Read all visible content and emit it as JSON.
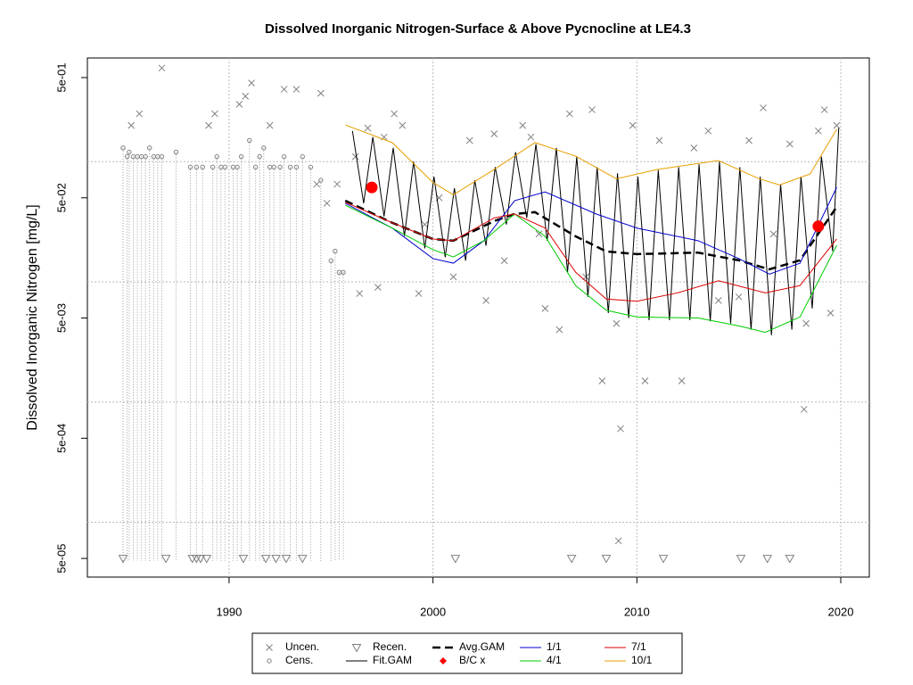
{
  "chart_data": {
    "type": "scatter",
    "title": "Dissolved Inorganic Nitrogen-Surface & Above Pycnocline at LE4.3",
    "ylabel": "Dissolved Inorganic Nitrogen [mg/L]",
    "xlim": [
      1983.05,
      2021.4
    ],
    "ylim": [
      3.5e-05,
      0.728
    ],
    "log_y": true,
    "grid": true,
    "xticks": [
      1990,
      2000,
      2010,
      2020
    ],
    "yticks": [
      {
        "value": 0.5,
        "label": "5e-01"
      },
      {
        "value": 0.05,
        "label": "5e-02"
      },
      {
        "value": 0.005,
        "label": "5e-03"
      },
      {
        "value": 0.0005,
        "label": "5e-04"
      },
      {
        "value": 5e-05,
        "label": "5e-05"
      }
    ],
    "ygrid": [
      0.1,
      0.01,
      0.001,
      0.0001
    ],
    "legend": "bottom",
    "series": [
      {
        "name": "Uncen.",
        "marker": "x",
        "color": "#808080",
        "x": [
          1985.2,
          1985.6,
          1986.7,
          1989.0,
          1989.3,
          1990.5,
          1990.8,
          1991.1,
          1992.0,
          1992.7,
          1993.3,
          1994.5,
          1994.3,
          1994.8,
          1995.3,
          1996.2,
          1996.4,
          1996.8,
          1997.3,
          1997.6,
          1998.1,
          1998.5,
          1999.3,
          1999.6,
          2000.3,
          2001.0,
          2001.8,
          2002.6,
          2003.0,
          2003.5,
          2004.4,
          2004.8,
          2005.2,
          2005.5,
          2006.2,
          2006.7,
          2007.5,
          2007.8,
          2008.3,
          2009.0,
          2009.2,
          2009.1,
          2009.8,
          2010.4,
          2011.1,
          2012.2,
          2012.8,
          2013.5,
          2014.0,
          2015.0,
          2015.5,
          2016.2,
          2016.7,
          2017.5,
          2018.3,
          2018.2,
          2018.9,
          2019.2,
          2019.5,
          2019.8
        ],
        "values": [
          0.2,
          0.25,
          0.6,
          0.2,
          0.25,
          0.3,
          0.35,
          0.45,
          0.2,
          0.4,
          0.4,
          0.37,
          0.065,
          0.045,
          0.065,
          0.11,
          0.008,
          0.19,
          0.009,
          0.16,
          0.25,
          0.2,
          0.008,
          0.03,
          0.05,
          0.011,
          0.15,
          0.007,
          0.17,
          0.015,
          0.2,
          0.16,
          0.025,
          0.006,
          0.004,
          0.25,
          0.011,
          0.27,
          0.0015,
          0.0045,
          0.0006,
          7e-05,
          0.2,
          0.0015,
          0.15,
          0.0015,
          0.13,
          0.18,
          0.007,
          0.0075,
          0.15,
          0.28,
          0.025,
          0.14,
          0.0045,
          0.00087,
          0.18,
          0.27,
          0.0055,
          0.2
        ]
      },
      {
        "name": "Cens.",
        "marker": "circle",
        "color": "#808080",
        "x": [
          1984.8,
          1985.0,
          1985.1,
          1985.3,
          1985.5,
          1985.7,
          1985.9,
          1986.1,
          1986.3,
          1986.5,
          1986.7,
          1987.4,
          1988.1,
          1988.4,
          1988.7,
          1989.2,
          1989.4,
          1989.6,
          1989.8,
          1990.2,
          1990.4,
          1990.6,
          1991.0,
          1991.3,
          1991.5,
          1991.7,
          1992.0,
          1992.2,
          1992.5,
          1992.7,
          1993.0,
          1993.3,
          1993.6,
          1994.0,
          1994.5,
          1995.0,
          1995.2,
          1995.4,
          1995.6
        ],
        "values": [
          0.13,
          0.11,
          0.12,
          0.11,
          0.11,
          0.11,
          0.11,
          0.13,
          0.11,
          0.11,
          0.11,
          0.12,
          0.09,
          0.09,
          0.09,
          0.09,
          0.11,
          0.09,
          0.09,
          0.09,
          0.09,
          0.11,
          0.15,
          0.09,
          0.11,
          0.13,
          0.09,
          0.09,
          0.09,
          0.11,
          0.09,
          0.09,
          0.11,
          0.09,
          0.07,
          0.015,
          0.018,
          0.012,
          0.012
        ]
      },
      {
        "name": "Recen.",
        "marker": "triangle",
        "color": "#808080",
        "x": [
          1984.8,
          1986.9,
          1988.2,
          1988.4,
          1988.6,
          1988.9,
          1990.7,
          1991.8,
          1992.3,
          1992.8,
          1993.6,
          2001.1,
          2006.8,
          2008.5,
          2011.3,
          2015.1,
          2016.4,
          2017.5
        ],
        "values": [
          5e-05,
          5e-05,
          5e-05,
          5e-05,
          5e-05,
          5e-05,
          5e-05,
          5e-05,
          5e-05,
          5e-05,
          5e-05,
          5e-05,
          5e-05,
          5e-05,
          5e-05,
          5e-05,
          5e-05,
          5e-05
        ]
      },
      {
        "name": "Fit.GAM",
        "marker": "line",
        "color": "#000000",
        "x": [
          1996.05,
          1996.6,
          1997.05,
          1997.6,
          1998.05,
          1998.6,
          1999.05,
          1999.6,
          2000.05,
          2000.6,
          2001.05,
          2001.6,
          2002.05,
          2002.6,
          2003.05,
          2003.6,
          2004.05,
          2004.6,
          2005.05,
          2005.6,
          2006.05,
          2006.6,
          2007.05,
          2007.6,
          2008.05,
          2008.6,
          2009.05,
          2009.6,
          2010.05,
          2010.6,
          2011.05,
          2011.6,
          2012.05,
          2012.6,
          2013.05,
          2013.6,
          2014.05,
          2014.6,
          2015.05,
          2015.6,
          2016.05,
          2016.6,
          2017.05,
          2017.6,
          2018.05,
          2018.6,
          2019.05,
          2019.6,
          2019.9
        ],
        "values": [
          0.18,
          0.045,
          0.16,
          0.035,
          0.13,
          0.024,
          0.1,
          0.019,
          0.075,
          0.016,
          0.06,
          0.015,
          0.07,
          0.02,
          0.09,
          0.03,
          0.12,
          0.034,
          0.14,
          0.022,
          0.13,
          0.012,
          0.11,
          0.0075,
          0.09,
          0.0055,
          0.08,
          0.005,
          0.075,
          0.0048,
          0.085,
          0.0048,
          0.09,
          0.0048,
          0.095,
          0.0047,
          0.1,
          0.0045,
          0.09,
          0.004,
          0.075,
          0.0036,
          0.065,
          0.004,
          0.075,
          0.006,
          0.11,
          0.018,
          0.19
        ]
      },
      {
        "name": "Avg.GAM",
        "marker": "dash",
        "color": "#000000",
        "x": [
          1995.7,
          1998,
          2000,
          2001,
          2003,
          2004,
          2005,
          2007,
          2008.5,
          2010,
          2013,
          2015,
          2016.5,
          2018,
          2019.8
        ],
        "values": [
          0.0473,
          0.031,
          0.0227,
          0.022,
          0.032,
          0.0367,
          0.038,
          0.0239,
          0.0179,
          0.017,
          0.0175,
          0.0151,
          0.0127,
          0.0151,
          0.042
        ]
      },
      {
        "name": "B/C x",
        "marker": "dot",
        "color": "#ff0000",
        "x": [
          1997.0,
          2018.9
        ],
        "values": [
          0.061,
          0.029
        ]
      },
      {
        "name": "1/1",
        "marker": "line",
        "color": "#0000cc",
        "x": [
          1995.7,
          1998,
          2000,
          2001,
          2002.5,
          2004,
          2005.5,
          2008,
          2010,
          2013,
          2015,
          2016.5,
          2018,
          2019.8
        ],
        "values": [
          0.045,
          0.028,
          0.0156,
          0.0143,
          0.022,
          0.0473,
          0.056,
          0.0367,
          0.028,
          0.022,
          0.0156,
          0.0116,
          0.0143,
          0.061
        ]
      },
      {
        "name": "4/1",
        "marker": "line",
        "color": "#00cc00",
        "x": [
          1995.7,
          1998,
          2000,
          2001,
          2002.5,
          2004,
          2005.5,
          2007,
          2008.5,
          2010,
          2013,
          2015,
          2016.3,
          2018,
          2019.8
        ],
        "values": [
          0.0434,
          0.028,
          0.0185,
          0.0161,
          0.022,
          0.0367,
          0.0239,
          0.0093,
          0.0058,
          0.0051,
          0.005,
          0.0043,
          0.0038,
          0.0051,
          0.0201
        ]
      },
      {
        "name": "7/1",
        "marker": "line",
        "color": "#dd0000",
        "x": [
          1995.7,
          1998,
          2000,
          2001,
          2003,
          2004,
          2005.5,
          2007,
          2008.5,
          2010,
          2012,
          2014,
          2016.3,
          2018,
          2019.8
        ],
        "values": [
          0.046,
          0.031,
          0.0227,
          0.022,
          0.034,
          0.0367,
          0.028,
          0.012,
          0.0072,
          0.0069,
          0.0081,
          0.0102,
          0.0081,
          0.0093,
          0.0227
        ]
      },
      {
        "name": "10/1",
        "marker": "line",
        "color": "#e69f00",
        "x": [
          1995.7,
          1998,
          2000,
          2001,
          2003,
          2005,
          2007,
          2009,
          2011,
          2014,
          2016,
          2017,
          2018.5,
          2019.8
        ],
        "values": [
          0.202,
          0.144,
          0.067,
          0.053,
          0.086,
          0.144,
          0.111,
          0.072,
          0.086,
          0.102,
          0.072,
          0.064,
          0.079,
          0.186
        ]
      }
    ]
  }
}
